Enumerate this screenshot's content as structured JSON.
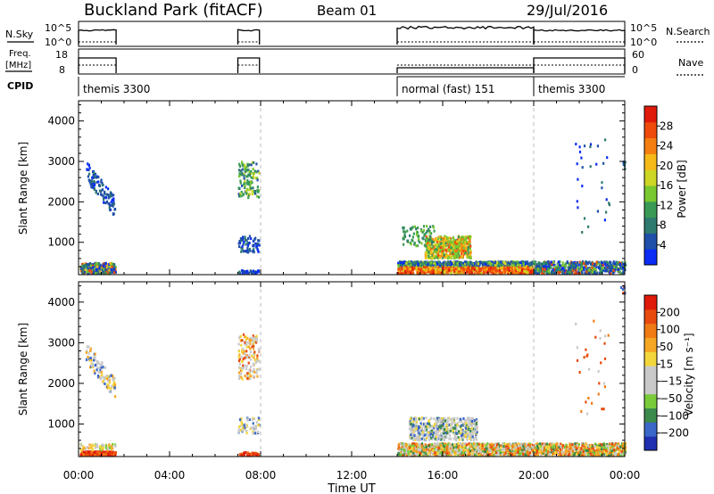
{
  "header": {
    "title": "Buckland Park (fitACF)",
    "beam": "Beam 01",
    "date": "29/Jul/2016"
  },
  "info_panels": {
    "nsky_label": "N.Sky",
    "nsky_ticks": [
      "10^5",
      "10^0"
    ],
    "nsearch_label": "N.Search",
    "nsearch_ticks": [
      "10^5",
      "10^0"
    ],
    "freq_label_1": "Freq.",
    "freq_label_2": "[MHz]",
    "freq_ticks": [
      "18",
      "8"
    ],
    "nave_label": "Nave",
    "nave_ticks": [
      "60",
      "0"
    ],
    "cpid_label": "CPID",
    "cpid_segments": [
      {
        "label": "themis 3300",
        "start_hour": 0.0
      },
      {
        "label": "normal (fast) 151",
        "start_hour": 14.0
      },
      {
        "label": "themis 3300",
        "start_hour": 20.0
      }
    ]
  },
  "chart_data": [
    {
      "type": "heatmap",
      "name": "power",
      "ylabel": "Slant Range [km]",
      "ylim": [
        200,
        4500
      ],
      "y_ticks": [
        "1000",
        "2000",
        "3000",
        "4000"
      ],
      "x_range_hours": [
        0,
        24
      ],
      "colorbar_label": "Power [dB]",
      "colorbar_ticks": [
        "4",
        "8",
        "12",
        "16",
        "20",
        "24",
        "28"
      ],
      "colorbar_range": [
        0,
        30
      ],
      "colors": [
        "#0a2cf5",
        "#1f4fa8",
        "#2f7a6e",
        "#3a9a55",
        "#79c830",
        "#cdd625",
        "#f5b918",
        "#f47f10",
        "#ee4a0c",
        "#e01a0a"
      ]
    },
    {
      "type": "heatmap",
      "name": "velocity",
      "ylabel": "Slant Range [km]",
      "ylim": [
        200,
        4500
      ],
      "y_ticks": [
        "1000",
        "2000",
        "3000",
        "4000"
      ],
      "x_range_hours": [
        0,
        24
      ],
      "x_ticks": [
        "00:00",
        "04:00",
        "08:00",
        "12:00",
        "16:00",
        "20:00",
        "00:00"
      ],
      "xlabel": "Time UT",
      "colorbar_label": "Velocity [m s⁻¹]",
      "colorbar_ticks": [
        "200",
        "100",
        "50",
        "15",
        "−15",
        "−50",
        "−100",
        "−200"
      ],
      "colors": [
        "#1f2fb0",
        "#3a67c8",
        "#3c8a4c",
        "#7acb3a",
        "#c9c9c9",
        "#c9c9c9",
        "#f2d63c",
        "#f5a623",
        "#f07a14",
        "#e84a0e",
        "#e01a0a"
      ]
    }
  ],
  "data_segments_hours": [
    [
      0.0,
      1.65
    ],
    [
      7.0,
      7.95
    ],
    [
      14.0,
      20.0
    ],
    [
      20.0,
      24.0
    ]
  ],
  "dashed_marker_hours": [
    8.0,
    20.0
  ]
}
